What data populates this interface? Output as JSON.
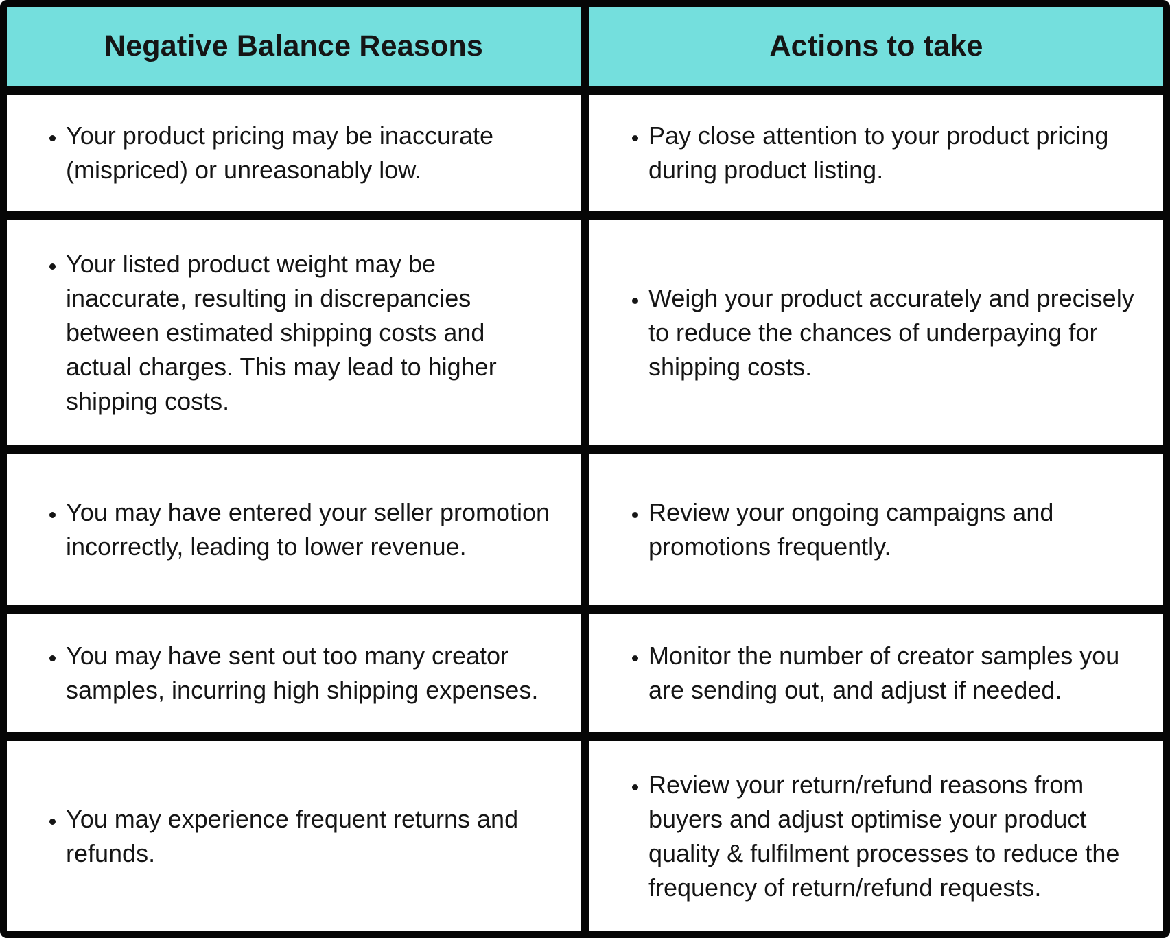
{
  "table": {
    "title": "Negative balance reasons and actions table",
    "colors": {
      "header_bg": "#74dfdd",
      "border": "#060606",
      "cell_bg": "#ffffff",
      "text": "#151515"
    },
    "columns": {
      "reasons_header": "Negative Balance Reasons",
      "actions_header": "Actions to take"
    },
    "rows": [
      {
        "reason": "Your product pricing may be inaccurate (mispriced) or unreasonably low.",
        "action": "Pay close attention to your product pricing during product listing."
      },
      {
        "reason": "Your listed product weight may be inaccurate, resulting in discrepancies between estimated shipping costs and actual charges. This may lead to higher shipping costs.",
        "action": "Weigh your product accurately and precisely to reduce the chances of underpaying for shipping costs."
      },
      {
        "reason": "You may have entered your seller promotion incorrectly, leading to lower revenue.",
        "action": "Review your ongoing campaigns and promotions frequently."
      },
      {
        "reason": "You may have sent out too many creator samples, incurring high shipping expenses.",
        "action": "Monitor the number of creator samples you are sending out, and adjust if needed."
      },
      {
        "reason": "You may experience frequent returns and refunds.",
        "action": "Review your return/refund reasons from buyers and adjust optimise your product quality &amp; fulfilment processes to reduce the frequency of return/refund requests."
      }
    ]
  }
}
